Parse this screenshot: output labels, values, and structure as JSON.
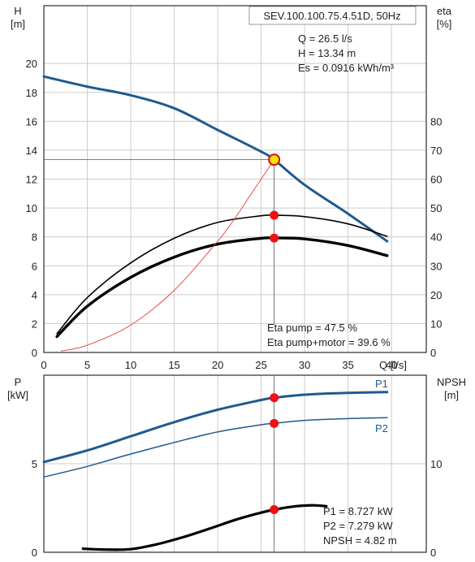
{
  "colors": {
    "blue": "#1f5a8f",
    "black": "#000000",
    "red_curve": "#e04040",
    "marker": "#ee1111",
    "grid": "#cccccc",
    "frame": "#000000"
  },
  "chart_data": [
    {
      "type": "line",
      "title": "SEV.100.100.75.4.51D, 50Hz",
      "xlabel": "Q [l/s]",
      "ylabel_left": [
        "H",
        "[m]"
      ],
      "ylabel_right": [
        "eta",
        "[%]"
      ],
      "xlim": [
        0,
        44
      ],
      "ylim": [
        0,
        24
      ],
      "ylim_right": [
        0,
        120
      ],
      "x_ticks": [
        0,
        5,
        10,
        15,
        20,
        25,
        30,
        35,
        40
      ],
      "y_ticks": [
        0,
        2,
        4,
        6,
        8,
        10,
        12,
        14,
        16,
        18,
        20
      ],
      "y_right_ticks": [
        0,
        10,
        20,
        30,
        40,
        50,
        60,
        70,
        80
      ],
      "grid": true,
      "series": [
        {
          "key": "H",
          "color": "#1f5a8f",
          "x": [
            0,
            5,
            10,
            15,
            20,
            25,
            26.5,
            30,
            35,
            39.5
          ],
          "y": [
            19.1,
            18.4,
            17.8,
            16.9,
            15.4,
            13.9,
            13.34,
            11.6,
            9.6,
            7.7
          ]
        },
        {
          "key": "eta_pump",
          "color": "#000000",
          "axis": "right",
          "x": [
            1.5,
            5,
            10,
            15,
            20,
            25,
            26.5,
            30,
            35,
            39.5
          ],
          "y": [
            6.5,
            19,
            31,
            39.5,
            45,
            47.3,
            47.5,
            47,
            44.5,
            40.2
          ]
        },
        {
          "key": "eta_pump_motor",
          "color": "#000000",
          "axis": "right",
          "x": [
            1.5,
            5,
            10,
            15,
            20,
            25,
            26.5,
            30,
            35,
            39.5
          ],
          "y": [
            5.5,
            16,
            26,
            33,
            37.5,
            39.5,
            39.6,
            39.3,
            37,
            33.5
          ]
        },
        {
          "key": "system_curve",
          "color": "#e04040",
          "x": [
            2,
            5,
            10,
            15,
            20,
            22,
            24,
            26.5
          ],
          "y": [
            0.1,
            0.5,
            1.9,
            4.3,
            7.7,
            9.3,
            11.1,
            13.34
          ]
        }
      ],
      "duty_point": {
        "q": 26.5,
        "h": 13.34,
        "eta_pump": 47.5,
        "eta_motor": 39.6
      },
      "annotations": {
        "q": "Q = 26.5 l/s",
        "h": "H = 13.34 m",
        "es": "Es = 0.0916 kWh/m³",
        "eta_pump": "Eta pump = 47.5 %",
        "eta_pump_motor": "Eta pump+motor = 39.6 %"
      }
    },
    {
      "type": "line",
      "xlabel": "",
      "ylabel_left": [
        "P",
        "[kW]"
      ],
      "ylabel_right": [
        "NPSH",
        "[m]"
      ],
      "xlim": [
        0,
        44
      ],
      "ylim": [
        0,
        10
      ],
      "ylim_right": [
        0,
        20
      ],
      "y_ticks": [
        0,
        5
      ],
      "y_right_ticks": [
        0,
        10
      ],
      "grid": true,
      "series": [
        {
          "key": "P1",
          "name": "P1",
          "color": "#1f5a8f",
          "x": [
            0,
            5,
            10,
            15,
            20,
            25,
            26.5,
            30,
            35,
            39.5
          ],
          "y": [
            5.1,
            5.75,
            6.55,
            7.35,
            8.05,
            8.6,
            8.727,
            8.9,
            9.0,
            9.05
          ]
        },
        {
          "key": "P2",
          "name": "P2",
          "color": "#1f5a8f",
          "x": [
            0,
            5,
            10,
            15,
            20,
            25,
            26.5,
            30,
            35,
            39.5
          ],
          "y": [
            4.25,
            4.85,
            5.55,
            6.2,
            6.8,
            7.2,
            7.279,
            7.45,
            7.55,
            7.6
          ]
        },
        {
          "key": "NPSH",
          "color": "#000000",
          "axis": "right",
          "x": [
            4.5,
            7,
            10,
            13,
            16,
            19,
            22,
            24.5,
            26.5,
            29,
            31,
            32.5
          ],
          "y": [
            0.4,
            0.3,
            0.35,
            0.9,
            1.7,
            2.65,
            3.65,
            4.35,
            4.82,
            5.2,
            5.3,
            5.2
          ]
        }
      ],
      "duty_point": {
        "q": 26.5,
        "p1": 8.727,
        "p2": 7.279,
        "npsh": 4.82
      },
      "annotations": {
        "p1": "P1 = 8.727 kW",
        "p2": "P2 = 7.279 kW",
        "npsh": "NPSH = 4.82 m"
      }
    }
  ]
}
